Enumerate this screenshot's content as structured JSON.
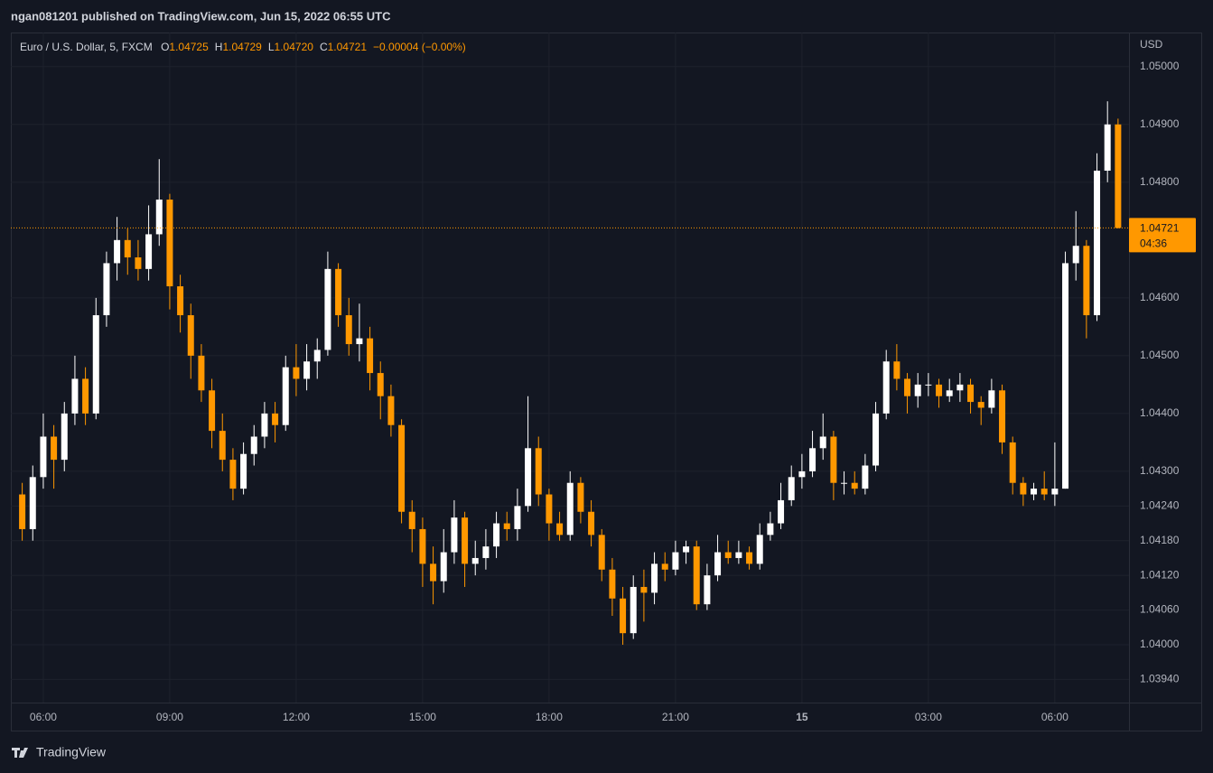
{
  "chart_data": {
    "type": "candlestick",
    "title": "ngan081201 published on TradingView.com, Jun 15, 2022 06:55 UTC",
    "symbol": "Euro / U.S. Dollar, 5, FXCM",
    "ohlc_header": [
      {
        "label": "O",
        "value": "1.04725"
      },
      {
        "label": "H",
        "value": "1.04729"
      },
      {
        "label": "L",
        "value": "1.04720"
      },
      {
        "label": "C",
        "value": "1.04721"
      }
    ],
    "change": "−0.00004 (−0.00%)",
    "currency": "USD",
    "last_price": {
      "value": 1.04721,
      "label": "1.04721",
      "countdown": "04:36",
      "color": "#ff9800"
    },
    "branding": "TradingView",
    "up_color": "#ffffff",
    "down_color": "#ff9800",
    "grid": true,
    "xlim": [
      5.23,
      31.76
    ],
    "xticks": [
      {
        "value": 6,
        "label": "06:00"
      },
      {
        "value": 9,
        "label": "09:00"
      },
      {
        "value": 12,
        "label": "12:00"
      },
      {
        "value": 15,
        "label": "15:00"
      },
      {
        "value": 18,
        "label": "18:00"
      },
      {
        "value": 21,
        "label": "21:00"
      },
      {
        "value": 24,
        "label": "15"
      },
      {
        "value": 27,
        "label": "03:00"
      },
      {
        "value": 30,
        "label": "06:00"
      }
    ],
    "ylim": [
      1.039,
      1.05059
    ],
    "yticks": [
      {
        "value": 1.0394,
        "label": "1.03940"
      },
      {
        "value": 1.04,
        "label": "1.04000"
      },
      {
        "value": 1.0406,
        "label": "1.04060"
      },
      {
        "value": 1.0412,
        "label": "1.04120"
      },
      {
        "value": 1.0418,
        "label": "1.04180"
      },
      {
        "value": 1.0424,
        "label": "1.04240"
      },
      {
        "value": 1.043,
        "label": "1.04300"
      },
      {
        "value": 1.044,
        "label": "1.04400"
      },
      {
        "value": 1.045,
        "label": "1.04500"
      },
      {
        "value": 1.046,
        "label": "1.04600"
      },
      {
        "value": 1.048,
        "label": "1.04800"
      },
      {
        "value": 1.049,
        "label": "1.04900"
      },
      {
        "value": 1.05,
        "label": "1.05000"
      }
    ],
    "x": [
      5.5,
      5.75,
      6,
      6.25,
      6.5,
      6.75,
      7,
      7.25,
      7.5,
      7.75,
      8,
      8.25,
      8.5,
      8.75,
      9,
      9.25,
      9.5,
      9.75,
      10,
      10.25,
      10.5,
      10.75,
      11,
      11.25,
      11.5,
      11.75,
      12,
      12.25,
      12.5,
      12.75,
      13,
      13.25,
      13.5,
      13.75,
      14,
      14.25,
      14.5,
      14.75,
      15,
      15.25,
      15.5,
      15.75,
      16,
      16.25,
      16.5,
      16.75,
      17,
      17.25,
      17.5,
      17.75,
      18,
      18.25,
      18.5,
      18.75,
      19,
      19.25,
      19.5,
      19.75,
      20,
      20.25,
      20.5,
      20.75,
      21,
      21.25,
      21.5,
      21.75,
      22,
      22.25,
      22.5,
      22.75,
      23,
      23.25,
      23.5,
      23.75,
      24,
      24.25,
      24.5,
      24.75,
      25,
      25.25,
      25.5,
      25.75,
      26,
      26.25,
      26.5,
      26.75,
      27,
      27.25,
      27.5,
      27.75,
      28,
      28.25,
      28.5,
      28.75,
      29,
      29.25,
      29.5,
      29.75,
      30,
      30.25,
      30.5,
      30.75,
      31,
      31.25,
      31.5
    ],
    "open": [
      1.0426,
      1.042,
      1.0429,
      1.0436,
      1.0432,
      1.044,
      1.0446,
      1.044,
      1.0457,
      1.0466,
      1.047,
      1.0467,
      1.0465,
      1.0471,
      1.0477,
      1.0462,
      1.0457,
      1.045,
      1.0444,
      1.0437,
      1.0432,
      1.0427,
      1.0433,
      1.0436,
      1.044,
      1.0438,
      1.0448,
      1.0446,
      1.0449,
      1.0451,
      1.0465,
      1.0457,
      1.0452,
      1.0453,
      1.0447,
      1.0443,
      1.0438,
      1.0423,
      1.042,
      1.0414,
      1.0411,
      1.0416,
      1.0422,
      1.0414,
      1.0415,
      1.0417,
      1.0421,
      1.042,
      1.0424,
      1.0434,
      1.0426,
      1.0421,
      1.0419,
      1.0428,
      1.0423,
      1.0419,
      1.0413,
      1.0408,
      1.0402,
      1.041,
      1.0409,
      1.0414,
      1.0413,
      1.0416,
      1.0417,
      1.0407,
      1.0412,
      1.0416,
      1.0415,
      1.0416,
      1.0414,
      1.0419,
      1.0421,
      1.0425,
      1.0429,
      1.043,
      1.0434,
      1.0436,
      1.0428,
      1.0428,
      1.0427,
      1.0431,
      1.044,
      1.0449,
      1.0446,
      1.0443,
      1.0445,
      1.0445,
      1.0443,
      1.0444,
      1.0445,
      1.0442,
      1.0441,
      1.0444,
      1.0435,
      1.0428,
      1.0426,
      1.0427,
      1.0426,
      1.0427,
      1.0466,
      1.0469,
      1.0457,
      1.0482,
      1.049
    ],
    "high": [
      1.0428,
      1.0431,
      1.044,
      1.0438,
      1.0442,
      1.045,
      1.0448,
      1.046,
      1.0468,
      1.0474,
      1.0472,
      1.047,
      1.0476,
      1.0484,
      1.0478,
      1.0464,
      1.0459,
      1.0452,
      1.0446,
      1.044,
      1.0434,
      1.0435,
      1.0438,
      1.0442,
      1.0442,
      1.045,
      1.0452,
      1.0452,
      1.0453,
      1.0468,
      1.0466,
      1.046,
      1.0459,
      1.0455,
      1.0449,
      1.0445,
      1.0439,
      1.0425,
      1.0422,
      1.0417,
      1.042,
      1.0425,
      1.0423,
      1.0418,
      1.042,
      1.0423,
      1.0423,
      1.0427,
      1.0443,
      1.0436,
      1.0427,
      1.0423,
      1.043,
      1.0429,
      1.0425,
      1.042,
      1.0415,
      1.041,
      1.0412,
      1.0413,
      1.0416,
      1.0416,
      1.0418,
      1.0418,
      1.0418,
      1.0414,
      1.0419,
      1.0418,
      1.0418,
      1.0417,
      1.0421,
      1.0423,
      1.0428,
      1.0431,
      1.0433,
      1.0437,
      1.044,
      1.0437,
      1.043,
      1.043,
      1.0433,
      1.0442,
      1.0451,
      1.0452,
      1.0447,
      1.0447,
      1.0447,
      1.0446,
      1.0446,
      1.0447,
      1.0446,
      1.0443,
      1.0446,
      1.0445,
      1.0436,
      1.0429,
      1.0428,
      1.043,
      1.0435,
      1.0468,
      1.0475,
      1.047,
      1.0485,
      1.0494,
      1.0491
    ],
    "low": [
      1.0418,
      1.0418,
      1.0427,
      1.0427,
      1.043,
      1.0438,
      1.0438,
      1.0439,
      1.0455,
      1.0463,
      1.0464,
      1.0463,
      1.0463,
      1.0469,
      1.0458,
      1.0454,
      1.0446,
      1.0442,
      1.0434,
      1.043,
      1.0425,
      1.0426,
      1.0431,
      1.0434,
      1.0435,
      1.0437,
      1.0443,
      1.0444,
      1.0446,
      1.045,
      1.0455,
      1.045,
      1.0449,
      1.0444,
      1.0439,
      1.0436,
      1.0421,
      1.0416,
      1.041,
      1.0407,
      1.0409,
      1.0414,
      1.041,
      1.0412,
      1.0413,
      1.0415,
      1.0418,
      1.0418,
      1.0423,
      1.0424,
      1.0418,
      1.0418,
      1.0418,
      1.0421,
      1.0417,
      1.0411,
      1.0405,
      1.04,
      1.0401,
      1.0404,
      1.0407,
      1.0411,
      1.0412,
      1.0414,
      1.0406,
      1.0406,
      1.0411,
      1.0414,
      1.0414,
      1.0413,
      1.0413,
      1.0418,
      1.042,
      1.0424,
      1.0427,
      1.0429,
      1.0432,
      1.0425,
      1.0426,
      1.0426,
      1.0426,
      1.043,
      1.0439,
      1.0444,
      1.044,
      1.0441,
      1.0443,
      1.0441,
      1.0442,
      1.0442,
      1.044,
      1.0438,
      1.044,
      1.0433,
      1.0426,
      1.0424,
      1.0425,
      1.0425,
      1.0424,
      1.0427,
      1.0463,
      1.0453,
      1.0456,
      1.048,
      1.0472
    ],
    "close": [
      1.042,
      1.0429,
      1.0436,
      1.0432,
      1.044,
      1.0446,
      1.044,
      1.0457,
      1.0466,
      1.047,
      1.0467,
      1.0465,
      1.0471,
      1.0477,
      1.0462,
      1.0457,
      1.045,
      1.0444,
      1.0437,
      1.0432,
      1.0427,
      1.0433,
      1.0436,
      1.044,
      1.0438,
      1.0448,
      1.0446,
      1.0449,
      1.0451,
      1.0465,
      1.0457,
      1.0452,
      1.0453,
      1.0447,
      1.0443,
      1.0438,
      1.0423,
      1.042,
      1.0414,
      1.0411,
      1.0416,
      1.0422,
      1.0414,
      1.0415,
      1.0417,
      1.0421,
      1.042,
      1.0424,
      1.0434,
      1.0426,
      1.0421,
      1.0419,
      1.0428,
      1.0423,
      1.0419,
      1.0413,
      1.0408,
      1.0402,
      1.041,
      1.0409,
      1.0414,
      1.0413,
      1.0416,
      1.0417,
      1.0407,
      1.0412,
      1.0416,
      1.0415,
      1.0416,
      1.0414,
      1.0419,
      1.0421,
      1.0425,
      1.0429,
      1.043,
      1.0434,
      1.0436,
      1.0428,
      1.0428,
      1.0427,
      1.0431,
      1.044,
      1.0449,
      1.0446,
      1.0443,
      1.0445,
      1.0445,
      1.0443,
      1.0444,
      1.0445,
      1.0442,
      1.0441,
      1.0444,
      1.0435,
      1.0428,
      1.0426,
      1.0427,
      1.0426,
      1.0427,
      1.0466,
      1.0469,
      1.0457,
      1.0482,
      1.049,
      1.04721
    ]
  }
}
